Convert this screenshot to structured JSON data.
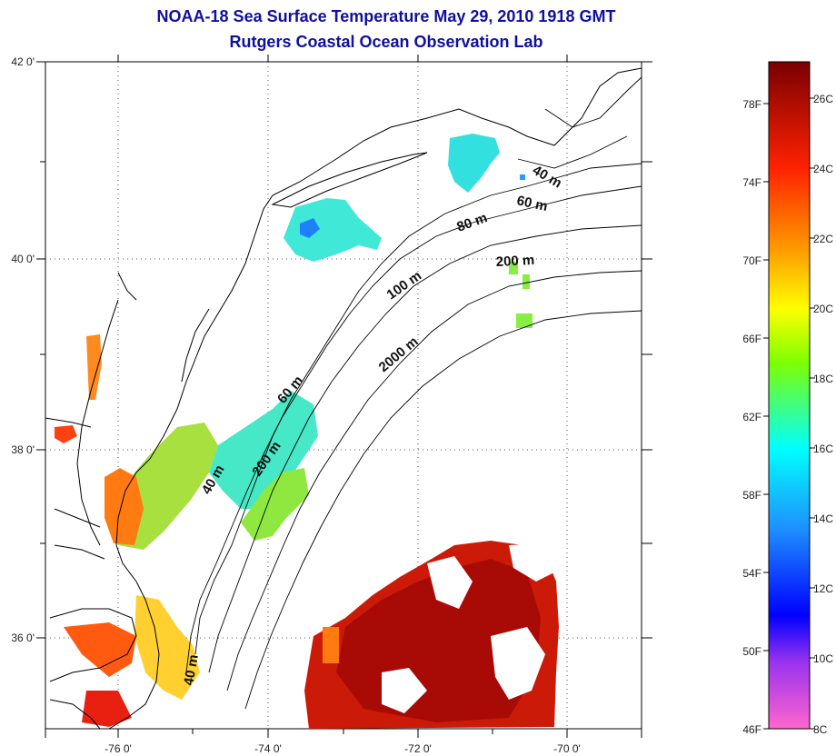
{
  "title": "NOAA-18 Sea Surface Temperature May 29, 2010 1918 GMT",
  "subtitle": "Rutgers Coastal Ocean Observation Lab",
  "map": {
    "lon_range": [
      -77,
      -69
    ],
    "lat_range": [
      35,
      42
    ],
    "lon_ticks": [
      "-76 0'",
      "-74 0'",
      "-72 0'",
      "-70 0'"
    ],
    "lat_ticks": [
      "42 0'",
      "40 0'",
      "38 0'",
      "36 0'"
    ],
    "grid": "dotted",
    "contour_labels": [
      "40 m",
      "60 m",
      "80 m",
      "200 m",
      "100 m",
      "2000 m",
      "60 m",
      "200 m",
      "40 m",
      "40 m"
    ]
  },
  "colorbar": {
    "fahrenheit_labels": [
      "78F",
      "74F",
      "70F",
      "66F",
      "62F",
      "58F",
      "54F",
      "50F",
      "46F"
    ],
    "celsius_labels": [
      "26C",
      "24C",
      "22C",
      "20C",
      "18C",
      "16C",
      "14C",
      "12C",
      "10C",
      "8C"
    ],
    "range_c": [
      8,
      27
    ],
    "colors": [
      "#ff66cc",
      "#7a2fd0",
      "#0000ff",
      "#1e90ff",
      "#00ffff",
      "#7fff00",
      "#ffff00",
      "#ff9900",
      "#ff2200",
      "#880000"
    ]
  },
  "palette": {
    "land_outline": "#000000",
    "title_color": "#1010a0"
  }
}
